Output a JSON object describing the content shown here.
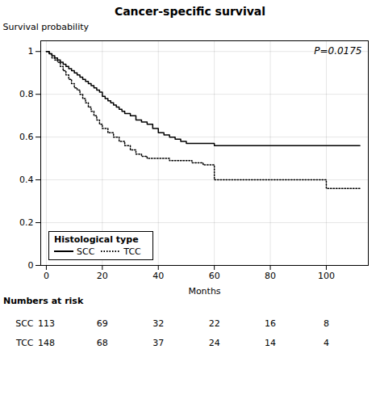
{
  "chart_data": {
    "type": "line",
    "title": "Cancer-specific survival",
    "xlabel": "Months",
    "ylabel": "Survival probability",
    "annotation": "P=0.0175",
    "xlim": [
      -2,
      115
    ],
    "ylim": [
      0,
      1.05
    ],
    "xticks": [
      0,
      20,
      40,
      60,
      80,
      100
    ],
    "yticks": [
      0,
      0.2,
      0.4,
      0.6,
      0.8,
      1
    ],
    "grid": true,
    "legend": "lower left",
    "legend_title": "Histological type",
    "series": [
      {
        "name": "SCC",
        "color": "#000000",
        "line_style": "solid",
        "x": [
          0,
          1,
          2,
          3,
          4,
          5,
          6,
          7,
          8,
          9,
          10,
          11,
          12,
          13,
          14,
          15,
          16,
          17,
          18,
          19,
          20,
          21,
          22,
          23,
          24,
          25,
          26,
          27,
          28,
          30,
          32,
          34,
          36,
          38,
          40,
          42,
          44,
          46,
          48,
          50,
          52,
          54,
          56,
          58,
          60,
          62,
          64,
          66,
          68,
          70,
          75,
          80,
          85,
          90,
          95,
          100,
          105,
          110,
          112
        ],
        "values": [
          1.0,
          0.99,
          0.98,
          0.97,
          0.96,
          0.95,
          0.94,
          0.93,
          0.92,
          0.91,
          0.9,
          0.89,
          0.88,
          0.87,
          0.86,
          0.85,
          0.84,
          0.83,
          0.82,
          0.81,
          0.79,
          0.78,
          0.77,
          0.76,
          0.75,
          0.74,
          0.73,
          0.72,
          0.71,
          0.7,
          0.68,
          0.67,
          0.66,
          0.64,
          0.62,
          0.61,
          0.6,
          0.59,
          0.58,
          0.57,
          0.57,
          0.57,
          0.57,
          0.57,
          0.56,
          0.56,
          0.56,
          0.56,
          0.56,
          0.56,
          0.56,
          0.56,
          0.56,
          0.56,
          0.56,
          0.56,
          0.56,
          0.56,
          0.56
        ]
      },
      {
        "name": "TCC",
        "color": "#000000",
        "line_style": "dotted",
        "x": [
          0,
          1,
          2,
          3,
          4,
          5,
          6,
          7,
          8,
          9,
          10,
          11,
          12,
          13,
          14,
          15,
          16,
          17,
          18,
          19,
          20,
          22,
          24,
          26,
          28,
          30,
          32,
          34,
          36,
          38,
          40,
          42,
          44,
          46,
          48,
          50,
          52,
          54,
          56,
          58,
          60,
          62,
          64,
          66,
          68,
          70,
          75,
          80,
          85,
          88,
          90,
          95,
          100,
          105,
          110,
          112
        ],
        "values": [
          1.0,
          0.99,
          0.97,
          0.96,
          0.95,
          0.93,
          0.91,
          0.89,
          0.87,
          0.85,
          0.83,
          0.82,
          0.8,
          0.78,
          0.76,
          0.74,
          0.72,
          0.7,
          0.68,
          0.66,
          0.64,
          0.62,
          0.6,
          0.58,
          0.56,
          0.54,
          0.52,
          0.51,
          0.5,
          0.5,
          0.5,
          0.5,
          0.49,
          0.49,
          0.49,
          0.49,
          0.48,
          0.48,
          0.47,
          0.47,
          0.4,
          0.4,
          0.4,
          0.4,
          0.4,
          0.4,
          0.4,
          0.4,
          0.4,
          0.4,
          0.4,
          0.4,
          0.36,
          0.36,
          0.36,
          0.36
        ]
      }
    ],
    "risk_table": {
      "label": "Numbers at risk",
      "times": [
        0,
        20,
        40,
        60,
        80,
        100
      ],
      "rows": [
        {
          "name": "SCC",
          "values": [
            113,
            69,
            32,
            22,
            16,
            8
          ]
        },
        {
          "name": "TCC",
          "values": [
            148,
            68,
            37,
            24,
            14,
            4
          ]
        }
      ]
    }
  }
}
